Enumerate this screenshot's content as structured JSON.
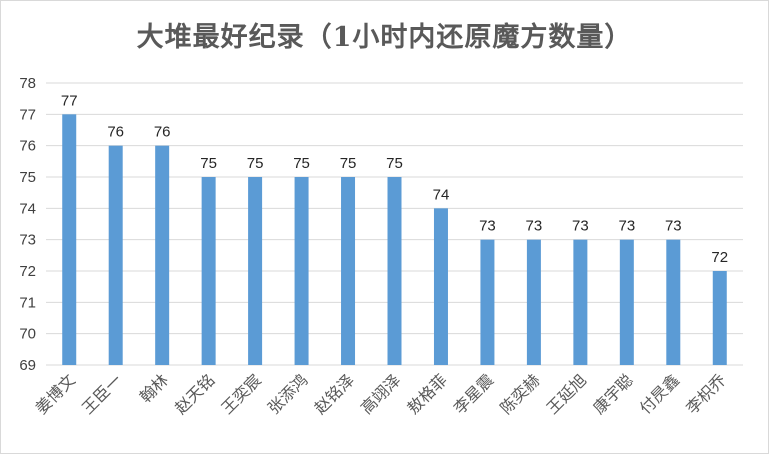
{
  "chart_data": {
    "type": "bar",
    "title": "大堆最好纪录（1小时内还原魔方数量）",
    "categories": [
      "姜博文",
      "王臣一",
      "翰林",
      "赵天铭",
      "王奕宸",
      "张添鸿",
      "赵铭泽",
      "高翊泽",
      "敖格菲",
      "李星震",
      "陈奕赫",
      "王延旭",
      "康宇聪",
      "付昃鑫",
      "李枳乔"
    ],
    "values": [
      77,
      76,
      76,
      75,
      75,
      75,
      75,
      75,
      74,
      73,
      73,
      73,
      73,
      73,
      72
    ],
    "ylim": [
      69,
      78
    ],
    "yticks": [
      69,
      70,
      71,
      72,
      73,
      74,
      75,
      76,
      77,
      78
    ],
    "grid": true,
    "legend": "none",
    "bar_color": "#5b9bd5",
    "grid_color": "#d9d9d9"
  }
}
